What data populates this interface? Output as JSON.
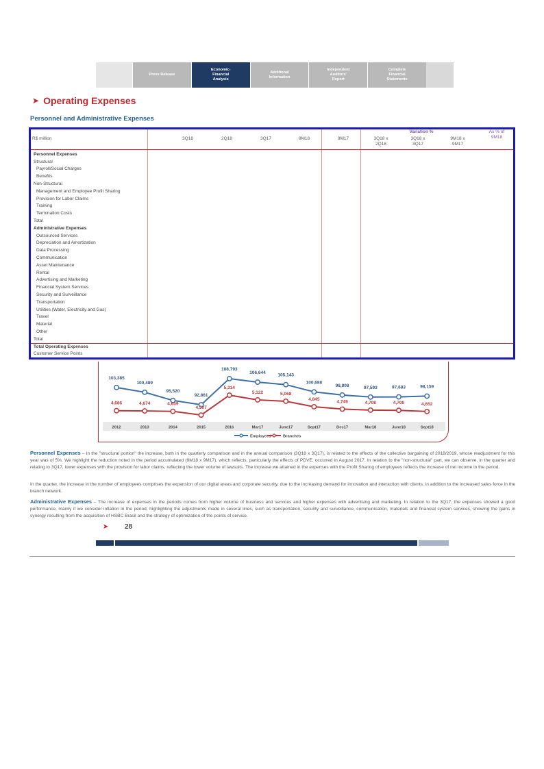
{
  "nav": {
    "tabs": [
      {
        "label": "Press Release",
        "active": false
      },
      {
        "label": "Economic-\nFinancial\nAnalysis",
        "active": true
      },
      {
        "label": "Additional\nInformation",
        "active": false
      },
      {
        "label": "Independent\nAuditors'\nReport",
        "active": false
      },
      {
        "label": "Complete\nFinancial\nStatements",
        "active": false
      }
    ]
  },
  "section_title": "Operating Expenses",
  "subtitle": "Personnel and Administrative Expenses",
  "table": {
    "unit_label": "R$ million",
    "headers": [
      "3Q18",
      "2Q18",
      "3Q17",
      "9M18",
      "9M17"
    ],
    "variation_header": "Variation %",
    "variation_cols": [
      "3Q18 x\n2Q18",
      "3Q18 x\n3Q17",
      "9M18 x\n9M17"
    ],
    "pct_header": "As % of\n9M18",
    "rows": [
      {
        "label": "Personnel Expenses",
        "kind": "head"
      },
      {
        "label": "Structural",
        "kind": "plain"
      },
      {
        "label": "Payroll/Social Charges",
        "kind": "sub"
      },
      {
        "label": "Benefits",
        "kind": "sub"
      },
      {
        "label": "Non-Structural",
        "kind": "plain"
      },
      {
        "label": "Management and Employee Profit Sharing",
        "kind": "sub"
      },
      {
        "label": "Provision for Labor Claims",
        "kind": "sub"
      },
      {
        "label": "Training",
        "kind": "sub"
      },
      {
        "label": "Termination Costs",
        "kind": "sub"
      },
      {
        "label": "Total",
        "kind": "plain"
      },
      {
        "label": "Administrative Expenses",
        "kind": "head"
      },
      {
        "label": "Outsourced Services",
        "kind": "sub"
      },
      {
        "label": "Depreciation and Amortization",
        "kind": "sub"
      },
      {
        "label": "Data Processing",
        "kind": "sub"
      },
      {
        "label": "Communication",
        "kind": "sub"
      },
      {
        "label": "Asset Maintenance",
        "kind": "sub"
      },
      {
        "label": "Rental",
        "kind": "sub"
      },
      {
        "label": "Advertising and Marketing",
        "kind": "sub"
      },
      {
        "label": "Financial System Services",
        "kind": "sub"
      },
      {
        "label": "Security and Surveillance",
        "kind": "sub"
      },
      {
        "label": "Transportation",
        "kind": "sub"
      },
      {
        "label": "Utilities (Water, Electricity and Gas)",
        "kind": "sub"
      },
      {
        "label": "Travel",
        "kind": "sub"
      },
      {
        "label": "Material",
        "kind": "sub"
      },
      {
        "label": "Other",
        "kind": "sub"
      },
      {
        "label": "Total",
        "kind": "plain"
      },
      {
        "label": "Total Operating Expenses",
        "kind": "total"
      },
      {
        "label": "Customer Service Points",
        "kind": "plain"
      }
    ]
  },
  "chart_data": {
    "type": "line",
    "categories": [
      "2012",
      "2013",
      "2014",
      "2015",
      "2016",
      "Mar17",
      "June17",
      "Sept17",
      "Dec17",
      "Mar18",
      "June18",
      "Sept18"
    ],
    "series": [
      {
        "name": "Employees",
        "color": "#3a6ea5",
        "values": [
          103385,
          100489,
          95520,
          92861,
          108793,
          106644,
          105143,
          100688,
          98808,
          97593,
          97683,
          98159
        ],
        "labels": [
          "103,385",
          "100,489",
          "95,520",
          "92,861",
          "108,793",
          "106,644",
          "105,143",
          "100,688",
          "98,808",
          "97,593",
          "97,683",
          "98,159"
        ]
      },
      {
        "name": "Branches",
        "color": "#b8383a",
        "values": [
          4686,
          4674,
          4659,
          4507,
          5314,
          5122,
          5068,
          4845,
          4749,
          4708,
          4700,
          4652
        ],
        "labels": [
          "4,686",
          "4,674",
          "4,659",
          "4,507",
          "5,314",
          "5,122",
          "5,068",
          "4,845",
          "4,749",
          "4,708",
          "4,700",
          "4,652"
        ]
      }
    ]
  },
  "paragraphs": [
    {
      "lead": "Personnel Expenses",
      "text": " – In the \"structural portion\" the increase, both in the quarterly comparison and in the annual comparison (3Q18 x 3Q17), is related to the effects of the collective bargaining of 2018/2019, whose readjustment for this year was of 5%. We highlight the reduction noted in the period accumulated (9M18 x 9M17), which reflects, particularly the effects of PDVE, occurred in August 2017. In relation to the \"non-structural\" part, we can observe, in the quarter and relating to 3Q17, lower expenses with the provision for labor claims, reflecting the lower volume of lawsuits. The increase we attained in the expenses with the Profit Sharing of employees reflects the increase of net income in the period."
    },
    {
      "lead": "",
      "text": "In the quarter, the increase in the number of employees comprises the expansion of our digital areas and corporate security, due to the increasing demand for innovation and interaction with clients, in addition to the increased sales force in the branch network."
    },
    {
      "lead": "Administrative Expenses",
      "text": " – The increase of expenses in the periods comes from higher volume of business and services and higher expenses with advertising and marketing. In relation to the 3Q17, the expenses showed a good performance, mainly if we consider inflation in the period, highlighting the adjustments made in several lines, such as transportation, security and surveillance, communication, materials and financial system services, showing the gains in synergy resulting from the acquisition of HSBC Brasil and the strategy of optimization of the points of service."
    }
  ],
  "page_number": "28"
}
